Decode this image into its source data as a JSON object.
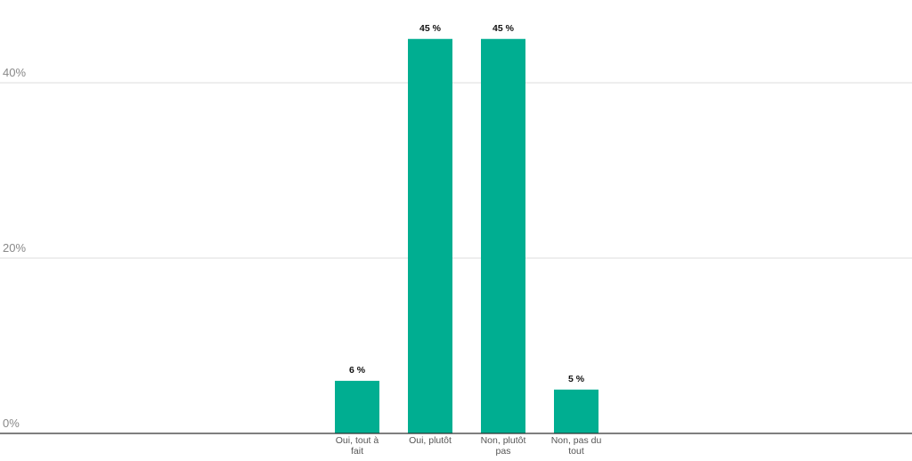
{
  "chart_data": {
    "type": "bar",
    "categories": [
      [
        "Oui, tout à",
        "fait"
      ],
      [
        "Oui, plutôt"
      ],
      [
        "Non, plutôt",
        "pas"
      ],
      [
        "Non, pas du",
        "tout"
      ]
    ],
    "values": [
      6,
      45,
      45,
      5
    ],
    "data_labels": [
      "6 %",
      "45 %",
      "45 %",
      "5 %"
    ],
    "y_ticks": [
      {
        "value": 0,
        "label": "0%"
      },
      {
        "value": 20,
        "label": "20%"
      },
      {
        "value": 40,
        "label": "40%"
      }
    ],
    "ylim": [
      0,
      48
    ],
    "grid": true,
    "title": "",
    "xlabel": "",
    "ylabel": "",
    "colors": {
      "bar": "#00AE91",
      "grid": "#dddddd",
      "axis": "#333333"
    }
  }
}
